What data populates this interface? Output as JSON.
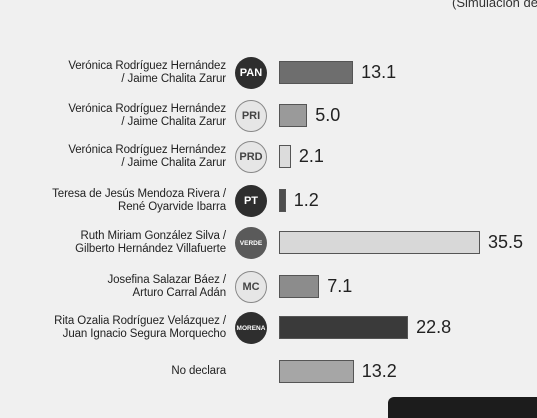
{
  "header": {
    "subtitle": "(Simulación de"
  },
  "chart_data": {
    "type": "bar",
    "orientation": "horizontal",
    "title": "",
    "xlabel": "",
    "ylabel": "",
    "xlim": [
      0,
      40
    ],
    "grid": false,
    "legend": "none",
    "categories": [
      "Verónica Rodríguez Hernández / Jaime Chalita Zarur",
      "Verónica Rodríguez Hernández / Jaime Chalita Zarur",
      "Verónica Rodríguez Hernández / Jaime Chalita Zarur",
      "Teresa de Jesús Mendoza Rivera / René Oyarvide Ibarra",
      "Ruth Miriam González Silva / Gilberto Hernández Villafuerte",
      "Josefina Salazar Báez / Arturo Carral Adán",
      "Rita Ozalia Rodríguez Velázquez / Juan Ignacio Segura Morquecho",
      "No declara"
    ],
    "values": [
      13.1,
      5.0,
      2.1,
      1.2,
      35.5,
      7.1,
      22.8,
      13.2
    ],
    "value_labels": [
      "13.1",
      "5.0",
      "2.1",
      "1.2",
      "35.5",
      "7.1",
      "22.8",
      "13.2"
    ],
    "party_logos": [
      "PAN",
      "PRI",
      "PRD",
      "PT",
      "VERDE",
      "MC",
      "MORENA",
      ""
    ],
    "bar_colors": [
      "#6e6e6e",
      "#9a9a9a",
      "#dcdcdc",
      "#4d4d4d",
      "#d8d8d8",
      "#8c8c8c",
      "#3a3a3a",
      "#a6a6a6"
    ]
  },
  "rows": [
    {
      "line1": "Verónica Rodríguez Hernández",
      "line2": "/ Jaime Chalita Zarur",
      "logo_text": "PAN",
      "logo_style": "dark"
    },
    {
      "line1": "Verónica Rodríguez Hernández",
      "line2": "/ Jaime Chalita Zarur",
      "logo_text": "PRI",
      "logo_style": "light"
    },
    {
      "line1": "Verónica Rodríguez Hernández",
      "line2": "/ Jaime Chalita Zarur",
      "logo_text": "PRD",
      "logo_style": "light"
    },
    {
      "line1": "Teresa de Jesús Mendoza Rivera /",
      "line2": "René Oyarvide Ibarra",
      "logo_text": "PT",
      "logo_style": "dark"
    },
    {
      "line1": "Ruth Miriam González Silva /",
      "line2": "Gilberto Hernández Villafuerte",
      "logo_text": "VERDE",
      "logo_style": "mid"
    },
    {
      "line1": "Josefina Salazar Báez /",
      "line2": "Arturo Carral Adán",
      "logo_text": "MC",
      "logo_style": "light"
    },
    {
      "line1": "Rita Ozalia Rodríguez Velázquez /",
      "line2": "Juan Ignacio Segura Morquecho",
      "logo_text": "MORENA",
      "logo_style": "dark"
    },
    {
      "line1": "No declara",
      "line2": "",
      "logo_text": "",
      "logo_style": "none"
    }
  ]
}
